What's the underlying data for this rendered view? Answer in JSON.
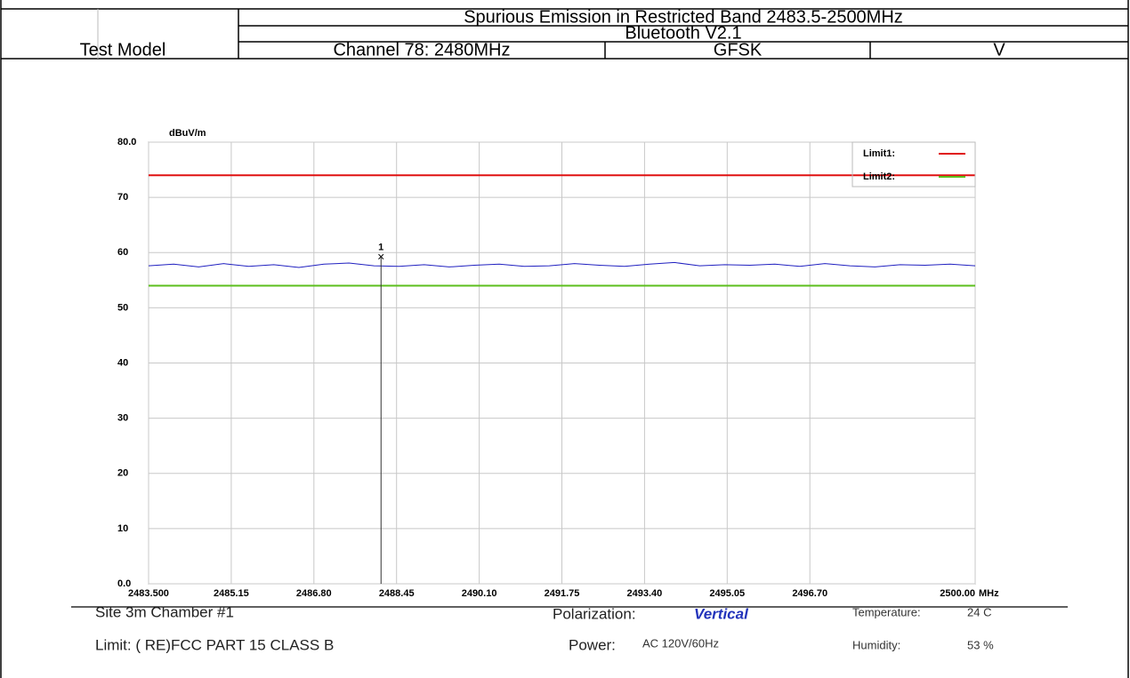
{
  "header": {
    "label": "Test Model",
    "title": "Spurious Emission in Restricted Band 2483.5-2500MHz",
    "mode": "Bluetooth V2.1",
    "channel": "Channel 78: 2480MHz",
    "modulation": "GFSK",
    "polarization": "V"
  },
  "chart_data": {
    "type": "line",
    "ylabel": "dBuV/m",
    "xlabel": "MHz",
    "ylim": [
      0,
      80
    ],
    "yticks": [
      {
        "value": 80,
        "label": "80.0"
      },
      70,
      60,
      50,
      40,
      30,
      20,
      10,
      {
        "value": 0,
        "label": "0.0"
      }
    ],
    "xlim": [
      2483.5,
      2500
    ],
    "xticks": [
      {
        "value": 2483.5,
        "label": "2483.500"
      },
      2485.15,
      {
        "value": 2486.8,
        "label": "2486.80"
      },
      2488.45,
      {
        "value": 2490.1,
        "label": "2490.10"
      },
      2491.75,
      {
        "value": 2493.4,
        "label": "2493.40"
      },
      2495.05,
      {
        "value": 2496.7,
        "label": "2496.70"
      },
      {
        "value": 2500,
        "label": "2500.00"
      }
    ],
    "grid": true,
    "legend": "top-right",
    "series": [
      {
        "name": "Limit1:",
        "color": "#e01010",
        "x": [
          2483.5,
          2500
        ],
        "values": [
          74,
          74
        ]
      },
      {
        "name": "Limit2:",
        "color": "#5cbf1c",
        "x": [
          2483.5,
          2500
        ],
        "values": [
          54,
          54
        ]
      },
      {
        "color": "#2020c0",
        "x": [
          2483.5,
          2484,
          2484.5,
          2485,
          2485.5,
          2486,
          2486.5,
          2487,
          2487.5,
          2488,
          2488.5,
          2489,
          2489.5,
          2490,
          2490.5,
          2491,
          2491.5,
          2492,
          2492.5,
          2493,
          2493.5,
          2494,
          2494.5,
          2495,
          2495.5,
          2496,
          2496.5,
          2497,
          2497.5,
          2498,
          2498.5,
          2499,
          2499.5,
          2500
        ],
        "values": [
          57.6,
          57.9,
          57.4,
          58.0,
          57.5,
          57.8,
          57.3,
          57.9,
          58.1,
          57.6,
          57.5,
          57.8,
          57.4,
          57.7,
          57.9,
          57.5,
          57.6,
          58.0,
          57.7,
          57.5,
          57.9,
          58.2,
          57.6,
          57.8,
          57.7,
          57.9,
          57.5,
          58.0,
          57.6,
          57.4,
          57.8,
          57.7,
          57.9,
          57.6
        ]
      }
    ],
    "markers": [
      {
        "label": "1",
        "x": 2488.14,
        "y": 59.1
      }
    ]
  },
  "footer": {
    "site": "Site  3m Chamber #1",
    "limit": "Limit: ( RE)FCC PART 15 CLASS B",
    "polarization_label": "Polarization:",
    "polarization": "Vertical",
    "power_label": "Power:",
    "power": "AC 120V/60Hz",
    "temperature_label": "Temperature:",
    "temperature": "24 C",
    "humidity_label": "Humidity:",
    "humidity": "53 %"
  }
}
